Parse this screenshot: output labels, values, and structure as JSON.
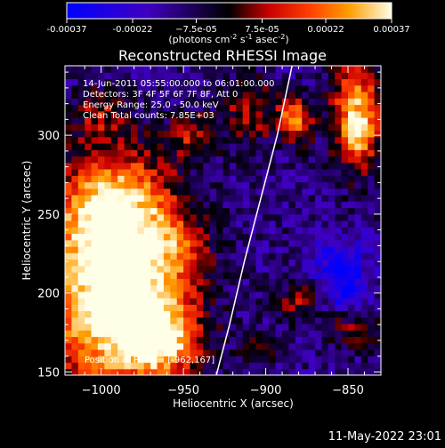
{
  "chart_data": {
    "type": "heatmap",
    "title": "Reconstructed RHESSI Image",
    "xlabel": "Heliocentric X (arcsec)",
    "ylabel": "Heliocentric Y (arcsec)",
    "xlim": [
      -1022,
      -830
    ],
    "ylim": [
      148,
      344
    ],
    "x_ticks": [
      -1000,
      -950,
      -900,
      -850
    ],
    "x_tick_labels": [
      "−1000",
      "−950",
      "−900",
      "−850"
    ],
    "y_ticks": [
      150,
      200,
      250,
      300
    ],
    "y_tick_labels": [
      "150",
      "200",
      "250",
      "300"
    ],
    "colorbar": {
      "range": [
        -0.00037,
        0.00037
      ],
      "tick_values": [
        -0.00037,
        -0.00022,
        -7.5e-05,
        7.5e-05,
        0.00022,
        0.00037
      ],
      "tick_labels": [
        "-0.00037",
        "-0.00022",
        "−7.5e-05",
        "7.5e-05",
        "0.00022",
        "0.00037"
      ],
      "unit_parts": [
        "(photons cm",
        "-2",
        " s",
        "-1",
        " asec",
        "-2",
        ")"
      ]
    },
    "annotations": [
      "14-Jun-2011 05:55:00.000 to 06:01:00.000",
      "Detectors: 3F 4F 5F 6F 7F 8F, Att 0",
      "Energy Range: 25.0 - 50.0 keV",
      "Clean    Total counts: 7.85E+03"
    ],
    "peak_label": "Position of Peak = [-962,167]",
    "peak_position": [
      -962,
      167
    ],
    "limb_curve": [
      [
        -930,
        148
      ],
      [
        -922,
        180
      ],
      [
        -913,
        220
      ],
      [
        -903,
        260
      ],
      [
        -893,
        300
      ],
      [
        -884,
        344
      ]
    ],
    "grid": false,
    "field": {
      "background": -0.00012,
      "blobs": [
        {
          "x": -1000,
          "y": 200,
          "sx": 28,
          "sy": 45,
          "amp": 0.00046
        },
        {
          "x": -970,
          "y": 185,
          "sx": 22,
          "sy": 25,
          "amp": 0.0003
        },
        {
          "x": -962,
          "y": 167,
          "sx": 14,
          "sy": 12,
          "amp": 0.00025
        },
        {
          "x": -990,
          "y": 255,
          "sx": 25,
          "sy": 25,
          "amp": 0.00036
        },
        {
          "x": -955,
          "y": 230,
          "sx": 14,
          "sy": 15,
          "amp": 0.00018
        },
        {
          "x": -945,
          "y": 300,
          "sx": 10,
          "sy": 10,
          "amp": 0.0002
        },
        {
          "x": -910,
          "y": 315,
          "sx": 12,
          "sy": 15,
          "amp": 0.0002
        },
        {
          "x": -882,
          "y": 310,
          "sx": 7,
          "sy": 10,
          "amp": 0.00038
        },
        {
          "x": -845,
          "y": 315,
          "sx": 10,
          "sy": 25,
          "amp": 0.00042
        },
        {
          "x": -843,
          "y": 300,
          "sx": 6,
          "sy": 8,
          "amp": 0.00016
        },
        {
          "x": -880,
          "y": 195,
          "sx": 9,
          "sy": 9,
          "amp": 0.00018
        },
        {
          "x": -845,
          "y": 178,
          "sx": 12,
          "sy": 9,
          "amp": 0.00016
        },
        {
          "x": -905,
          "y": 165,
          "sx": 8,
          "sy": 8,
          "amp": 0.00014
        },
        {
          "x": -1000,
          "y": 315,
          "sx": 12,
          "sy": 12,
          "amp": 0.00016
        },
        {
          "x": -855,
          "y": 220,
          "sx": 12,
          "sy": 12,
          "amp": -0.0002
        },
        {
          "x": -850,
          "y": 200,
          "sx": 8,
          "sy": 8,
          "amp": -0.00022
        }
      ]
    }
  },
  "footer": {
    "timestamp": "11-May-2022 23:01"
  }
}
